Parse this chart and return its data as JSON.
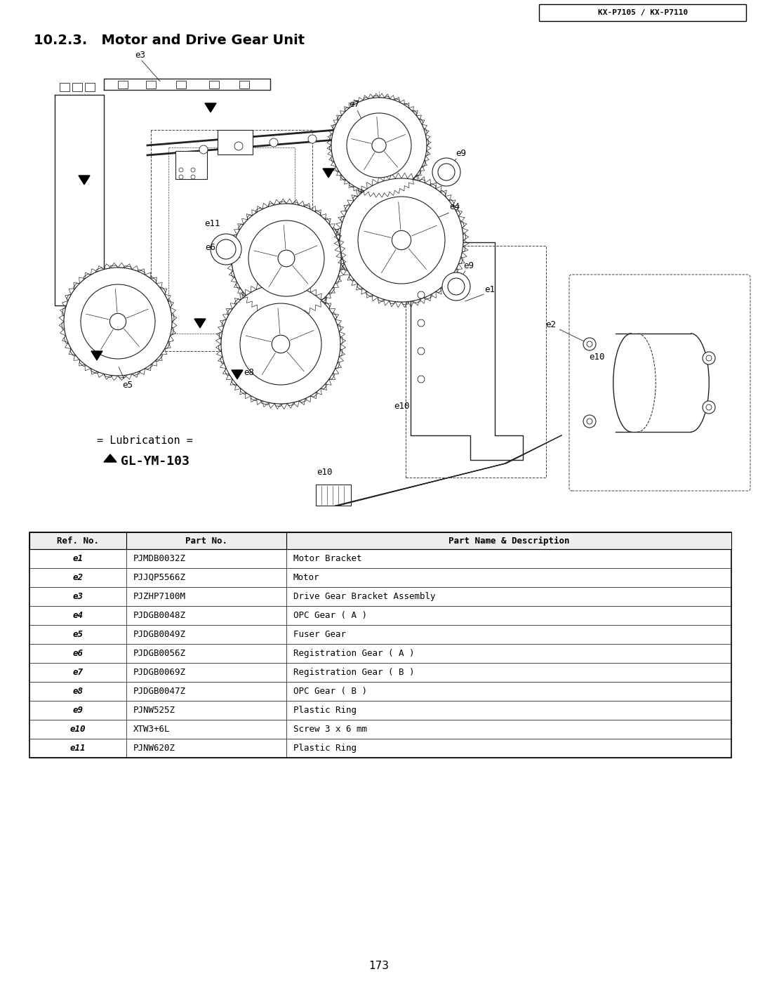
{
  "page_title": "10.2.3.   Motor and Drive Gear Unit",
  "header_text": "KX-P7105 / KX-P7110",
  "footer_text": "173",
  "lubrication_line1": "= Lubrication =",
  "lubrication_line2": "GL-YM-103",
  "table_headers": [
    "Ref. No.",
    "Part No.",
    "Part Name & Description"
  ],
  "table_rows": [
    [
      "e1",
      "PJMDB0032Z",
      "Motor Bracket"
    ],
    [
      "e2",
      "PJJQP5566Z",
      "Motor"
    ],
    [
      "e3",
      "PJZHP7100M",
      "Drive Gear Bracket Assembly"
    ],
    [
      "e4",
      "PJDGB0048Z",
      "OPC Gear ( A )"
    ],
    [
      "e5",
      "PJDGB0049Z",
      "Fuser Gear"
    ],
    [
      "e6",
      "PJDGB0056Z",
      "Registration Gear ( A )"
    ],
    [
      "e7",
      "PJDGB0069Z",
      "Registration Gear ( B )"
    ],
    [
      "e8",
      "PJDGB0047Z",
      "OPC Gear ( B )"
    ],
    [
      "e9",
      "PJNW525Z",
      "Plastic Ring"
    ],
    [
      "e10",
      "XTW3+6L",
      "Screw 3 x 6 mm"
    ],
    [
      "e11",
      "PJNW620Z",
      "Plastic Ring"
    ]
  ],
  "bg_color": "#ffffff",
  "text_color": "#000000"
}
